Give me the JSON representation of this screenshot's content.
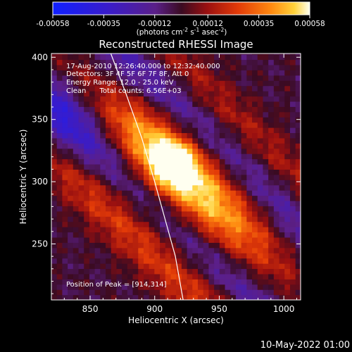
{
  "chart_data": {
    "type": "heatmap",
    "title": "Reconstructed RHESSI Image",
    "xlabel": "Heliocentric X (arcsec)",
    "ylabel": "Heliocentric Y (arcsec)",
    "x_range": [
      820,
      1013
    ],
    "y_range": [
      205,
      403
    ],
    "x_ticks": [
      850,
      900,
      950,
      1000
    ],
    "y_ticks": [
      250,
      300,
      350,
      400
    ],
    "colorbar": {
      "range": [
        -0.00058,
        0.00058
      ],
      "tick_values": [
        -0.00058,
        -0.00035,
        -0.00012,
        0.00012,
        0.00035,
        0.00058
      ],
      "tick_labels": [
        "-0.00058",
        "-0.00035",
        "-0.00012",
        "0.00012",
        "0.00035",
        "0.00058"
      ],
      "unit_base": "(photons cm",
      "unit_exp1": "-2",
      "unit_mid": " s",
      "unit_exp2": "-1",
      "unit_mid2": " asec",
      "unit_exp3": "-2",
      "unit_end": ")"
    },
    "info_lines": [
      "17-Aug-2010 12:26:40.000 to 12:32:40.000",
      "Detectors: 3F 4F 5F 6F 7F 8F, Att 0",
      "Energy Range: 12.0 - 25.0 keV",
      "Clean      Total counts: 6.56E+03"
    ],
    "peak_label": "Position of Peak = [914,314]",
    "peak": [
      914,
      314
    ],
    "limb_curve": [
      [
        866,
        403
      ],
      [
        878,
        370
      ],
      [
        890,
        335
      ],
      [
        900,
        300
      ],
      [
        908,
        270
      ],
      [
        916,
        240
      ],
      [
        922,
        205
      ]
    ],
    "timestamp": "10-May-2022 01:00"
  }
}
